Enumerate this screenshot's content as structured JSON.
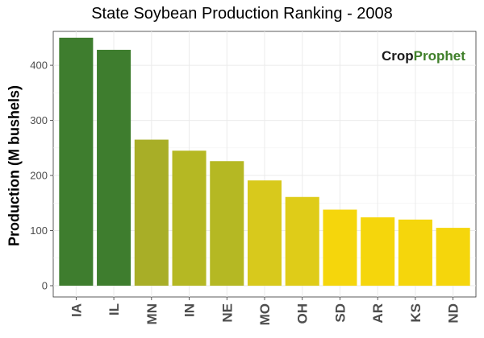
{
  "chart_data": {
    "type": "bar",
    "title": "State Soybean Production Ranking - 2008",
    "xlabel": "",
    "ylabel": "Production (M bushels)",
    "categories": [
      "IA",
      "IL",
      "MN",
      "IN",
      "NE",
      "MO",
      "OH",
      "SD",
      "AR",
      "KS",
      "ND"
    ],
    "values": [
      450,
      428,
      265,
      245,
      226,
      191,
      161,
      138,
      124,
      120,
      105
    ],
    "colors": [
      "#3e7d2e",
      "#3e7d2e",
      "#a8ae27",
      "#b5b823",
      "#b5b823",
      "#d8c91c",
      "#dfcc18",
      "#f5d60c",
      "#f5d60c",
      "#f5d60c",
      "#f5d60c"
    ],
    "ylim": [
      0,
      460
    ],
    "yticks": [
      0,
      100,
      200,
      300,
      400
    ],
    "grid": true,
    "legend": "none"
  },
  "logo": {
    "part1": "Crop",
    "part2": "Prophet"
  }
}
